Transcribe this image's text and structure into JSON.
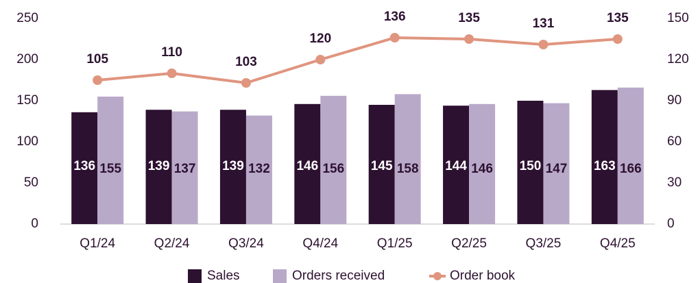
{
  "chart_data": {
    "type": "bar",
    "categories": [
      "Q1/24",
      "Q2/24",
      "Q3/24",
      "Q4/24",
      "Q1/25",
      "Q2/25",
      "Q3/25",
      "Q4/25"
    ],
    "series": [
      {
        "name": "Sales",
        "color": "#2d1130",
        "values": [
          136,
          139,
          139,
          146,
          145,
          144,
          150,
          163
        ]
      },
      {
        "name": "Orders received",
        "color": "#b9a9c9",
        "values": [
          155,
          137,
          132,
          156,
          158,
          146,
          147,
          166
        ]
      },
      {
        "name": "Order book",
        "color": "#e0957f",
        "type": "line",
        "axis": "y2",
        "values": [
          105,
          110,
          103,
          120,
          136,
          135,
          131,
          135
        ]
      }
    ],
    "ylim": [
      0,
      250
    ],
    "yticks": [
      0,
      50,
      100,
      150,
      200,
      250
    ],
    "y2lim": [
      0,
      150
    ],
    "y2ticks": [
      0,
      30,
      60,
      90,
      120,
      150
    ],
    "legend": "bottom"
  }
}
